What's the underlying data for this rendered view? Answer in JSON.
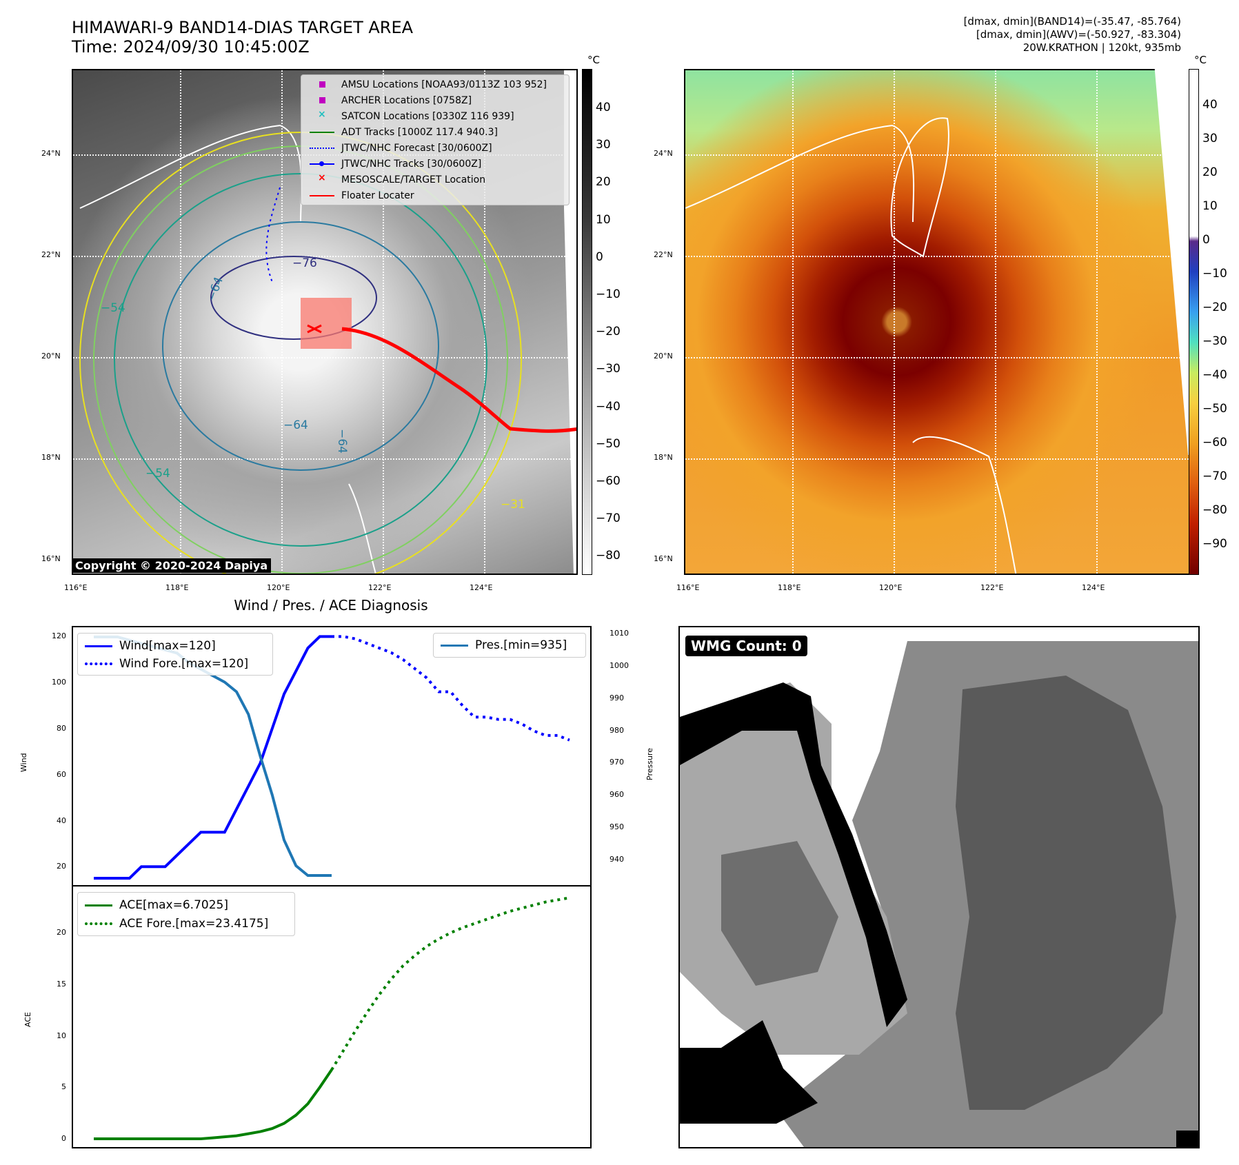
{
  "header": {
    "title_line1": "HIMAWARI-9 BAND14-DIAS TARGET AREA",
    "title_line2": "Time: 2024/09/30 10:45:00Z",
    "info_line1": "[dmax, dmin](BAND14)=(-35.47, -85.764)",
    "info_line2": "[dmax, dmin](AWV)=(-50.927, -83.304)",
    "info_line3": "20W.KRATHON | 120kt, 935mb"
  },
  "ir_map": {
    "lat_labels": [
      "24°N",
      "22°N",
      "20°N",
      "18°N",
      "16°N"
    ],
    "lon_labels": [
      "116°E",
      "118°E",
      "120°E",
      "122°E",
      "124°E"
    ],
    "colorbar_unit": "°C",
    "colorbar_ticks": [
      "40",
      "30",
      "20",
      "10",
      "0",
      "−10",
      "−20",
      "−30",
      "−40",
      "−50",
      "−60",
      "−70",
      "−80"
    ],
    "contour_labels": [
      "−76",
      "−64",
      "−64",
      "−64",
      "−54",
      "−54",
      "−31"
    ],
    "legend": [
      {
        "label": "AMSU Locations [NOAA93/0113Z 103 952]",
        "color": "#c000c0",
        "symbol": "square"
      },
      {
        "label": "ARCHER Locations [0758Z]",
        "color": "#c000c0",
        "symbol": "square"
      },
      {
        "label": "SATCON Locations [0330Z 116 939]",
        "color": "#20c0c0",
        "symbol": "x"
      },
      {
        "label": "ADT Tracks [1000Z 117.4 940.3]",
        "color": "#008000",
        "symbol": "line"
      },
      {
        "label": "JTWC/NHC Forecast [30/0600Z]",
        "color": "#0000ff",
        "symbol": "dotted"
      },
      {
        "label": "JTWC/NHC Tracks [30/0600Z]",
        "color": "#0000ff",
        "symbol": "line-dot"
      },
      {
        "label": "MESOSCALE/TARGET Location",
        "color": "#ff0000",
        "symbol": "x"
      },
      {
        "label": "Floater Locater",
        "color": "#ff0000",
        "symbol": "line"
      }
    ],
    "copyright": "Copyright © 2020-2024 Dapiya"
  },
  "bd_map": {
    "lat_labels": [
      "24°N",
      "22°N",
      "20°N",
      "18°N",
      "16°N"
    ],
    "lon_labels": [
      "116°E",
      "118°E",
      "120°E",
      "122°E",
      "124°E"
    ],
    "colorbar_unit": "°C",
    "colorbar_ticks": [
      "40",
      "30",
      "20",
      "10",
      "0",
      "−10",
      "−20",
      "−30",
      "−40",
      "−50",
      "−60",
      "−70",
      "−80",
      "−90"
    ]
  },
  "diagnosis_title": "Wind / Pres. / ACE Diagnosis",
  "wmg": {
    "badge": "WMG Count: 0"
  },
  "chart_data": [
    {
      "type": "line",
      "title": "Wind / Pres. / ACE Diagnosis",
      "ylabel": "Wind",
      "y2label": "Pressure",
      "ylim": [
        12,
        124
      ],
      "y2lim": [
        932,
        1012
      ],
      "yticks": [
        "120",
        "100",
        "80",
        "60",
        "40",
        "20"
      ],
      "y2ticks": [
        "1010",
        "1000",
        "990",
        "980",
        "970",
        "960",
        "950",
        "940"
      ],
      "series": [
        {
          "name": "Wind[max=120]",
          "color": "#0000ff",
          "style": "solid",
          "axis": "left",
          "x": [
            0,
            1,
            2,
            3,
            4,
            5,
            6,
            7,
            8,
            9,
            10,
            11,
            12,
            13,
            14,
            15,
            16,
            17,
            18,
            19,
            20
          ],
          "y": [
            15,
            15,
            15,
            15,
            20,
            20,
            20,
            25,
            30,
            35,
            35,
            35,
            45,
            55,
            65,
            80,
            95,
            105,
            115,
            120,
            120
          ]
        },
        {
          "name": "Wind Fore.[max=120]",
          "color": "#0000ff",
          "style": "dotted",
          "axis": "left",
          "x": [
            20,
            21,
            22,
            23,
            24,
            25,
            26,
            27,
            28,
            29,
            30,
            31,
            32,
            33,
            34,
            35,
            36,
            37,
            38,
            39,
            40
          ],
          "y": [
            120,
            120,
            119,
            117,
            115,
            113,
            110,
            106,
            102,
            96,
            96,
            90,
            85,
            85,
            84,
            84,
            82,
            79,
            77,
            77,
            75
          ]
        },
        {
          "name": "Pres.[min=935]",
          "color": "#1f77b4",
          "style": "solid",
          "axis": "right",
          "x": [
            0,
            1,
            2,
            3,
            4,
            5,
            6,
            7,
            8,
            9,
            10,
            11,
            12,
            13,
            14,
            15,
            16,
            17,
            18,
            19,
            20
          ],
          "y": [
            1009,
            1009,
            1009,
            1008,
            1007,
            1006,
            1005,
            1004,
            1001,
            999,
            997,
            995,
            992,
            985,
            972,
            960,
            946,
            938,
            935,
            935,
            935
          ]
        }
      ]
    },
    {
      "type": "line",
      "ylabel": "ACE",
      "ylim": [
        -0.8,
        24.5
      ],
      "yticks": [
        "20",
        "15",
        "10",
        "5",
        "0"
      ],
      "series": [
        {
          "name": "ACE[max=6.7025]",
          "color": "#008000",
          "style": "solid",
          "x": [
            0,
            1,
            2,
            3,
            4,
            5,
            6,
            7,
            8,
            9,
            10,
            11,
            12,
            13,
            14,
            15,
            16,
            17,
            18,
            19,
            20
          ],
          "y": [
            0,
            0,
            0,
            0,
            0,
            0,
            0,
            0,
            0,
            0,
            0.1,
            0.2,
            0.3,
            0.5,
            0.7,
            1.0,
            1.5,
            2.3,
            3.4,
            5.0,
            6.7
          ]
        },
        {
          "name": "ACE Fore.[max=23.4175]",
          "color": "#008000",
          "style": "dotted",
          "x": [
            20,
            21,
            22,
            23,
            24,
            25,
            26,
            27,
            28,
            29,
            30,
            31,
            32,
            33,
            34,
            35,
            36,
            37,
            38,
            39,
            40
          ],
          "y": [
            6.7,
            8.6,
            10.5,
            12.3,
            14.0,
            15.5,
            16.8,
            17.8,
            18.7,
            19.4,
            20.0,
            20.5,
            20.9,
            21.3,
            21.7,
            22.1,
            22.4,
            22.7,
            23.0,
            23.2,
            23.4
          ]
        }
      ]
    }
  ]
}
